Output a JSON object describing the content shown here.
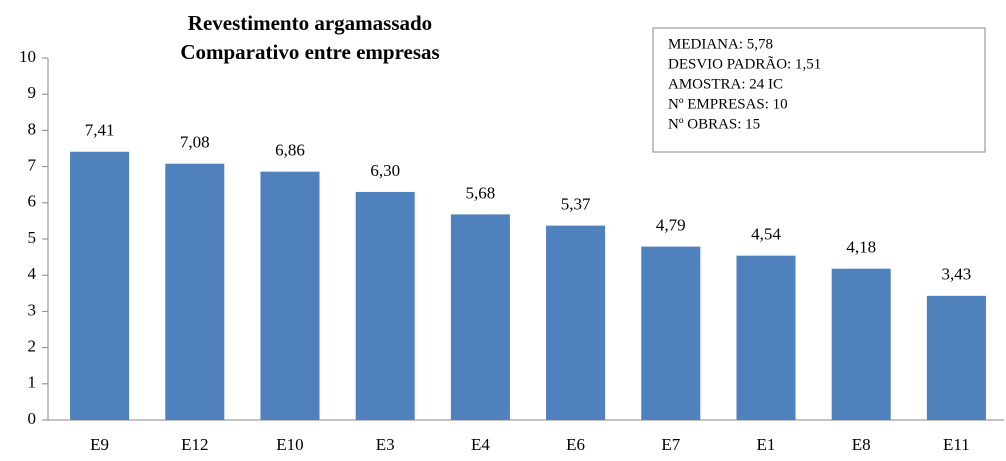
{
  "chart_data": {
    "type": "bar",
    "title": [
      "Revestimento argamassado",
      "Comparativo entre empresas"
    ],
    "annotation": [
      "MEDIANA: 5,78",
      "DESVIO  PADRÃO: 1,51",
      "AMOSTRA: 24 IC",
      "Nº EMPRESAS: 10",
      "Nº OBRAS: 15"
    ],
    "categories": [
      "E9",
      "E12",
      "E10",
      "E3",
      "E4",
      "E6",
      "E7",
      "E1",
      "E8",
      "E11"
    ],
    "values": [
      7.41,
      7.08,
      6.86,
      6.3,
      5.68,
      5.37,
      4.79,
      4.54,
      4.18,
      3.43
    ],
    "value_labels": [
      "7,41",
      "7,08",
      "6,86",
      "6,30",
      "5,68",
      "5,37",
      "4,79",
      "4,54",
      "4,18",
      "3,43"
    ],
    "color": "#4f81bd",
    "ylim": [
      0,
      10
    ],
    "yticks": [
      0,
      1,
      2,
      3,
      4,
      5,
      6,
      7,
      8,
      9,
      10
    ],
    "grid": false
  }
}
